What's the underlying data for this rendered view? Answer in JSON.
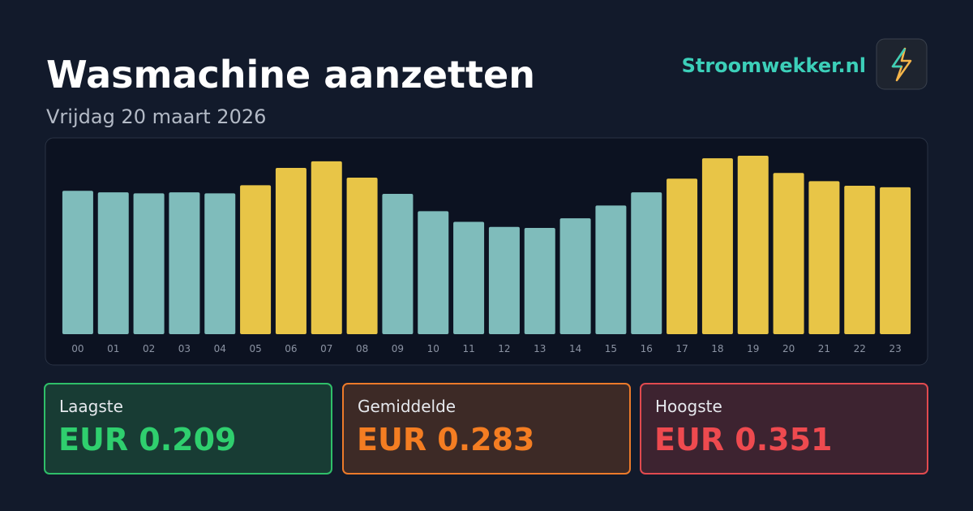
{
  "chart_data": {
    "type": "bar",
    "title": "Wasmachine aanzetten",
    "subtitle": "Vrijdag 20 maart 2026",
    "categories": [
      "00",
      "01",
      "02",
      "03",
      "04",
      "05",
      "06",
      "07",
      "08",
      "09",
      "10",
      "11",
      "12",
      "13",
      "14",
      "15",
      "16",
      "17",
      "18",
      "19",
      "20",
      "21",
      "22",
      "23"
    ],
    "values": [
      0.282,
      0.279,
      0.277,
      0.279,
      0.277,
      0.293,
      0.327,
      0.34,
      0.308,
      0.276,
      0.242,
      0.221,
      0.211,
      0.209,
      0.228,
      0.253,
      0.279,
      0.306,
      0.346,
      0.351,
      0.317,
      0.301,
      0.292,
      0.289
    ],
    "colors": [
      "#7fbcbb",
      "#7fbcbb",
      "#7fbcbb",
      "#7fbcbb",
      "#7fbcbb",
      "#e8c547",
      "#e8c547",
      "#e8c547",
      "#e8c547",
      "#7fbcbb",
      "#7fbcbb",
      "#7fbcbb",
      "#7fbcbb",
      "#7fbcbb",
      "#7fbcbb",
      "#7fbcbb",
      "#7fbcbb",
      "#e8c547",
      "#e8c547",
      "#e8c547",
      "#e8c547",
      "#e8c547",
      "#e8c547",
      "#e8c547"
    ]
  },
  "brand": "Stroomwekker.nl",
  "cards": [
    {
      "label": "Laagste",
      "value": "EUR 0.209"
    },
    {
      "label": "Gemiddelde",
      "value": "EUR 0.283"
    },
    {
      "label": "Hoogste",
      "value": "EUR 0.351"
    }
  ]
}
